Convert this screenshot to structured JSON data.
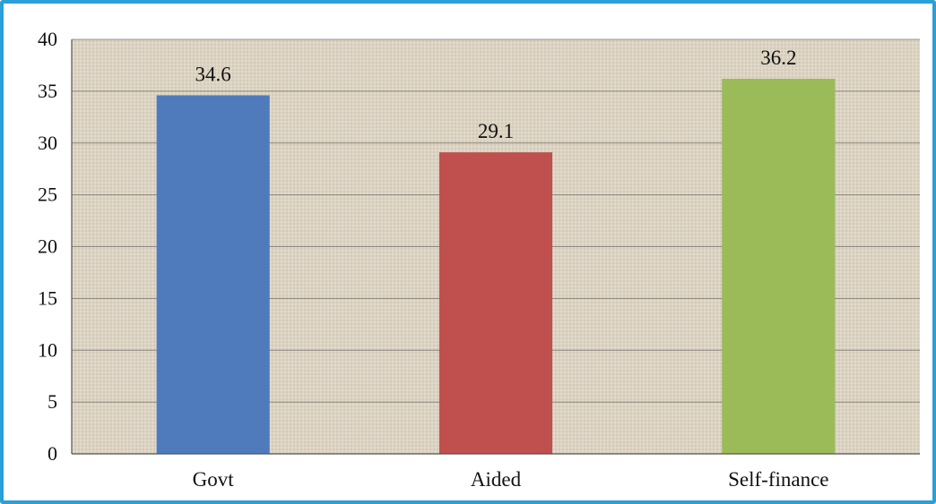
{
  "chart_data": {
    "type": "bar",
    "title": "",
    "xlabel": "",
    "ylabel": "",
    "categories": [
      "Govt",
      "Aided",
      "Self-finance"
    ],
    "values": [
      34.6,
      29.1,
      36.2
    ],
    "data_labels": [
      "34.6",
      "29.1",
      "36.2"
    ],
    "colors": [
      "#4f7bbd",
      "#c0504d",
      "#9bbb59"
    ],
    "ylim": [
      0,
      40
    ],
    "yticks": [
      "0",
      "5",
      "10",
      "15",
      "20",
      "25",
      "30",
      "35",
      "40"
    ],
    "grid": true,
    "legend": "none",
    "plot_background": "#dcd3c2",
    "frame_color": "#2a9fd8"
  }
}
